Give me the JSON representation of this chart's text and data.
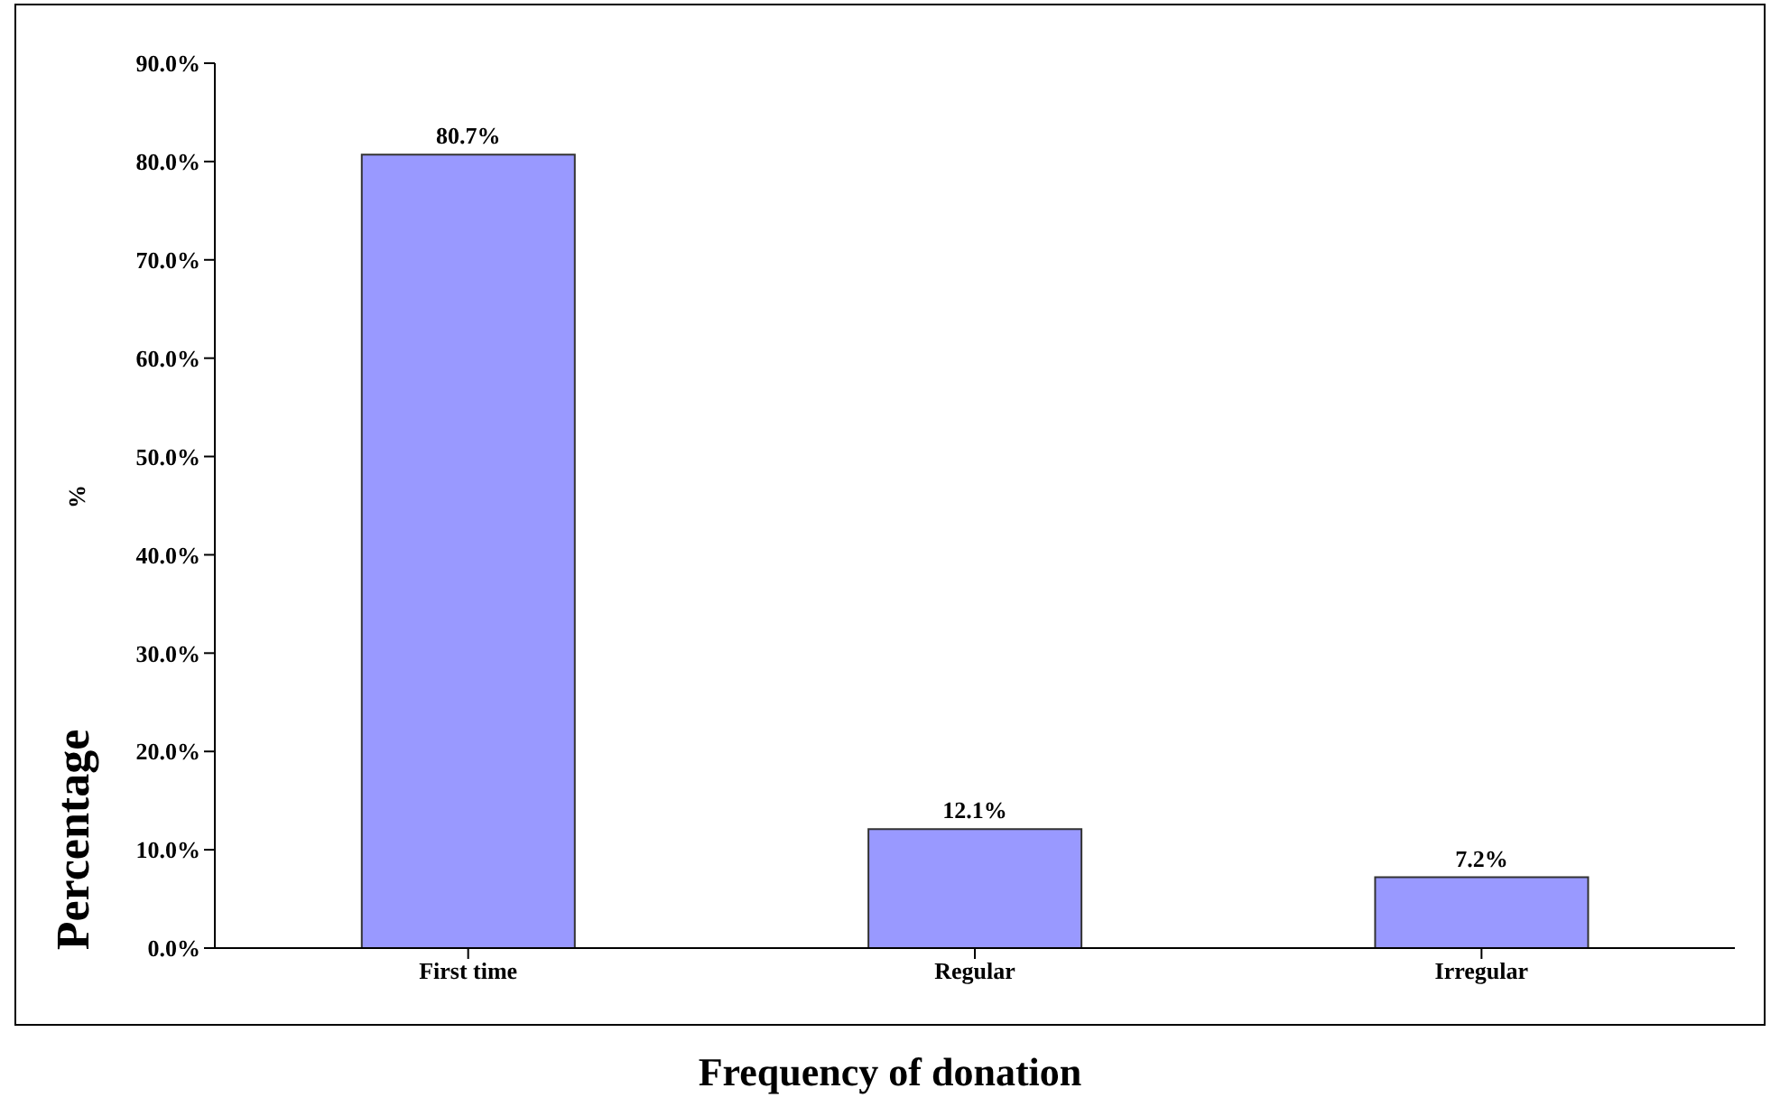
{
  "chart_data": {
    "type": "bar",
    "xlabel": "Frequency of donation",
    "ylabel": "Percentage",
    "annotations": [
      "%"
    ],
    "categories": [
      "First time",
      "Regular",
      "Irregular"
    ],
    "values": [
      80.7,
      12.1,
      7.2
    ],
    "value_labels": [
      "80.7%",
      "12.1%",
      "7.2%"
    ],
    "color": "#9999ff",
    "ylim": [
      0,
      90
    ],
    "yticks": [
      {
        "value": 0,
        "label": "0.0%"
      },
      {
        "value": 10,
        "label": "10.0%"
      },
      {
        "value": 20,
        "label": "20.0%"
      },
      {
        "value": 30,
        "label": "30.0%"
      },
      {
        "value": 40,
        "label": "40.0%"
      },
      {
        "value": 50,
        "label": "50.0%"
      },
      {
        "value": 60,
        "label": "60.0%"
      },
      {
        "value": 70,
        "label": "70.0%"
      },
      {
        "value": 80,
        "label": "80.0%"
      },
      {
        "value": 90,
        "label": "90.0%"
      }
    ],
    "grid": false,
    "legend": false
  }
}
